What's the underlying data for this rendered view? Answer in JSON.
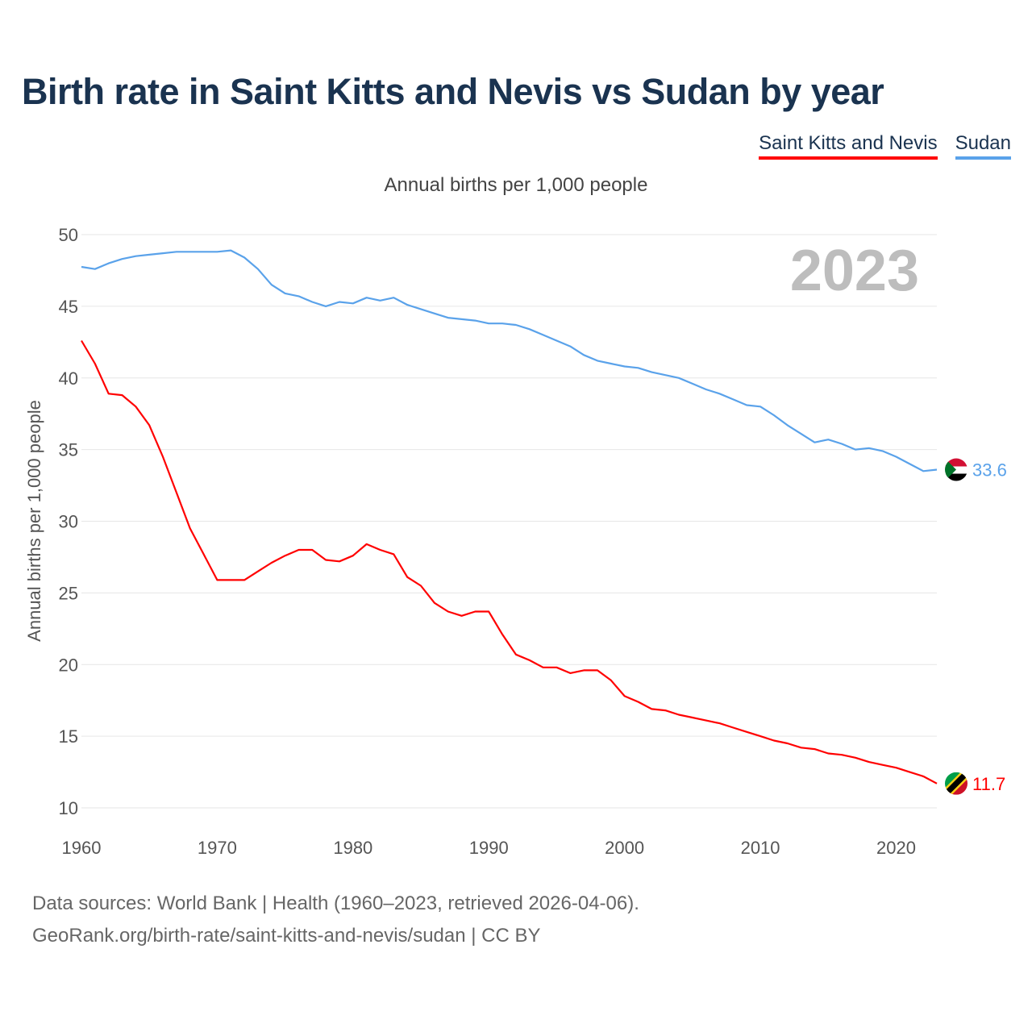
{
  "title": "Birth rate in Saint Kitts and Nevis vs Sudan by year",
  "legend": [
    {
      "label": "Saint Kitts and Nevis",
      "color": "#ff0000"
    },
    {
      "label": "Sudan",
      "color": "#5aa2ea"
    }
  ],
  "footer": {
    "line1": "Data sources: World Bank | Health (1960–2023, retrieved 2026-04-06).",
    "line2": "GeoRank.org/birth-rate/saint-kitts-and-nevis/sudan | CC BY"
  },
  "chart_data": {
    "type": "line",
    "title": "Birth rate in Saint Kitts and Nevis vs Sudan by year",
    "subtitle": "Annual births per 1,000 people",
    "ylabel": "Annual births per 1,000 people",
    "xlabel": "",
    "year_label": "2023",
    "ylim": [
      10,
      50
    ],
    "xlim": [
      1960,
      2023
    ],
    "yticks": [
      10,
      15,
      20,
      25,
      30,
      35,
      40,
      45,
      50
    ],
    "xticks": [
      1960,
      1970,
      1980,
      1990,
      2000,
      2010,
      2020
    ],
    "grid": true,
    "legend_position": "top-right",
    "x_start": 1960,
    "series": [
      {
        "name": "Saint Kitts and Nevis",
        "color": "#ff0000",
        "end_label": "11.7",
        "flag": "saint-kitts-and-nevis-flag",
        "values": [
          42.6,
          41.0,
          38.9,
          38.8,
          38.0,
          36.7,
          34.5,
          32.0,
          29.5,
          27.7,
          25.9,
          25.9,
          25.9,
          26.5,
          27.1,
          27.6,
          28.0,
          28.0,
          27.3,
          27.2,
          27.6,
          28.4,
          28.0,
          27.7,
          26.1,
          25.5,
          24.3,
          23.7,
          23.4,
          23.7,
          23.7,
          22.1,
          20.7,
          20.3,
          19.8,
          19.8,
          19.4,
          19.6,
          19.6,
          18.9,
          17.8,
          17.4,
          16.9,
          16.8,
          16.5,
          16.3,
          16.1,
          15.9,
          15.6,
          15.3,
          15.0,
          14.7,
          14.5,
          14.2,
          14.1,
          13.8,
          13.7,
          13.5,
          13.2,
          13.0,
          12.8,
          12.5,
          12.2,
          11.7
        ]
      },
      {
        "name": "Sudan",
        "color": "#5aa2ea",
        "end_label": "33.6",
        "flag": "sudan-flag",
        "values": [
          47.75,
          47.6,
          48.0,
          48.3,
          48.5,
          48.6,
          48.7,
          48.8,
          48.8,
          48.8,
          48.8,
          48.9,
          48.4,
          47.6,
          46.5,
          45.9,
          45.7,
          45.3,
          45.0,
          45.3,
          45.2,
          45.6,
          45.4,
          45.6,
          45.1,
          44.8,
          44.5,
          44.2,
          44.1,
          44.0,
          43.8,
          43.8,
          43.7,
          43.4,
          43.0,
          42.6,
          42.2,
          41.6,
          41.2,
          41.0,
          40.8,
          40.7,
          40.4,
          40.2,
          40.0,
          39.6,
          39.2,
          38.9,
          38.5,
          38.1,
          38.0,
          37.4,
          36.7,
          36.1,
          35.5,
          35.7,
          35.4,
          35.0,
          35.1,
          34.9,
          34.5,
          34.0,
          33.5,
          33.6
        ]
      }
    ]
  }
}
